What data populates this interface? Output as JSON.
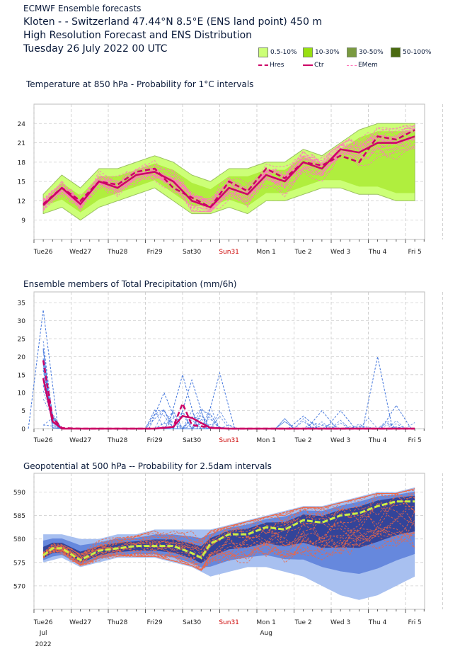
{
  "header": {
    "source": "ECMWF Ensemble forecasts",
    "location": "Kloten -  - Switzerland 47.44°N 8.5°E (ENS land point) 450 m",
    "subtitle": "High Resolution Forecast and ENS Distribution",
    "date": "Tuesday 26 July 2022 00 UTC"
  },
  "legend": {
    "items": [
      {
        "label": "0.5-10%",
        "color": "#ccff77"
      },
      {
        "label": "10-30%",
        "color": "#99e010"
      },
      {
        "label": "30-50%",
        "color": "#7a9a40"
      },
      {
        "label": "50-100%",
        "color": "#4a6a10"
      }
    ],
    "lines": [
      {
        "label": "Hres",
        "color": "#cc0066",
        "style": "dashed"
      },
      {
        "label": "Ctr",
        "color": "#cc0066",
        "style": "solid"
      },
      {
        "label": "EMem",
        "color": "#ff77bb",
        "style": "dashed"
      }
    ]
  },
  "colors": {
    "hres": "#cc0066",
    "emem_temp": "#ff77bb",
    "emem_precip": "#4477dd",
    "z_outer": "#a8c0f0",
    "z_mid": "#6688dd",
    "z_inner": "#334499",
    "z_mem": "#ee6644",
    "z_ctr": "#ccee44",
    "sunday": "#cc0000"
  },
  "x_axis": {
    "ticks": [
      "Tue26",
      "Wed27",
      "Thu28",
      "Fri29",
      "Sat30",
      "Sun31",
      "Mon 1",
      "Tue 2",
      "Wed 3",
      "Thu 4",
      "Fri 5"
    ],
    "sunday_index": 5,
    "month_labels": [
      {
        "day": 26,
        "label": "Jul"
      },
      {
        "day": 32,
        "label": "Aug"
      }
    ],
    "year": "2022"
  },
  "chart_data": [
    {
      "type": "line",
      "title": "Temperature at 850 hPa - Probability for 1°C intervals",
      "xlabel": "",
      "ylabel": "",
      "x_unit": "days from 26 Jul 00 UTC",
      "yticks": [
        9,
        12,
        15,
        18,
        21,
        24
      ],
      "ylim": [
        6,
        27
      ],
      "grid": true,
      "series": [
        {
          "name": "Hres",
          "x": [
            0,
            0.5,
            1,
            1.5,
            2,
            2.5,
            3,
            3.5,
            4,
            4.5,
            5,
            5.5,
            6,
            6.5,
            7,
            7.5,
            8,
            8.5,
            9,
            9.5,
            10
          ],
          "values": [
            11.5,
            14,
            12,
            15,
            14.5,
            16.5,
            17,
            14,
            12.5,
            11,
            15,
            13.5,
            17,
            15.5,
            18,
            17.5,
            19,
            18,
            22,
            21.5,
            23
          ]
        },
        {
          "name": "Ctr",
          "x": [
            0,
            0.5,
            1,
            1.5,
            2,
            2.5,
            3,
            3.5,
            4,
            4.5,
            5,
            5.5,
            6,
            6.5,
            7,
            7.5,
            8,
            8.5,
            9,
            9.5,
            10
          ],
          "values": [
            11.3,
            14,
            11.5,
            15,
            14,
            16,
            16.5,
            15,
            12,
            11,
            14,
            13,
            16,
            15,
            18,
            17,
            20,
            19.5,
            21,
            21,
            22
          ]
        }
      ],
      "band_0_5_10": {
        "x": [
          0,
          0.5,
          1,
          1.5,
          2,
          2.5,
          3,
          3.5,
          4,
          4.5,
          5,
          5.5,
          6,
          6.5,
          7,
          7.5,
          8,
          8.5,
          9,
          9.5,
          10
        ],
        "low": [
          10,
          11,
          9,
          11,
          12,
          13,
          14,
          12,
          10,
          10,
          11,
          10,
          12,
          12,
          13,
          14,
          14,
          13,
          13,
          12,
          12
        ],
        "high": [
          13,
          16,
          14,
          17,
          17,
          18,
          19,
          18,
          16,
          15,
          17,
          17,
          18,
          18,
          20,
          19,
          21,
          23,
          24,
          24,
          24
        ]
      }
    },
    {
      "type": "line",
      "title": "Ensemble members of Total Precipitation (mm/6h)",
      "xlabel": "",
      "ylabel": "",
      "x_unit": "days from 26 Jul 00 UTC",
      "yticks": [
        0,
        5,
        10,
        15,
        20,
        25,
        30,
        35
      ],
      "ylim": [
        0,
        38
      ],
      "grid": true,
      "series": [
        {
          "name": "Hres",
          "x": [
            0,
            0.25,
            0.5,
            1,
            2,
            3,
            3.5,
            3.75,
            4,
            4.5,
            5,
            10
          ],
          "values": [
            19,
            3,
            0.2,
            0,
            0,
            0,
            0.5,
            7,
            1,
            0.3,
            0,
            0
          ]
        },
        {
          "name": "Ctr",
          "x": [
            0,
            0.25,
            0.5,
            1,
            2,
            3,
            3.5,
            3.75,
            4,
            4.5,
            5,
            10
          ],
          "values": [
            14,
            2,
            0,
            0,
            0,
            0,
            0.5,
            3.5,
            3,
            0.2,
            0,
            0
          ]
        }
      ],
      "member_peaks": [
        {
          "x": 0,
          "value": 33
        },
        {
          "x": 3.25,
          "value": 10
        },
        {
          "x": 3.75,
          "value": 15
        },
        {
          "x": 4,
          "value": 13.5
        },
        {
          "x": 4.75,
          "value": 15.5
        },
        {
          "x": 7,
          "value": 3.5
        },
        {
          "x": 7.5,
          "value": 5
        },
        {
          "x": 8,
          "value": 5
        },
        {
          "x": 9,
          "value": 20
        },
        {
          "x": 9.5,
          "value": 6.5
        }
      ]
    },
    {
      "type": "area",
      "title": "Geopotential at 500 hPa -- Probability for 2.5dam intervals",
      "xlabel": "",
      "ylabel": "",
      "x_unit": "days from 26 Jul 00 UTC",
      "yticks": [
        570,
        575,
        580,
        585,
        590
      ],
      "ylim": [
        565,
        594
      ],
      "grid": true,
      "series": [
        {
          "name": "Ctr",
          "x": [
            0,
            0.25,
            0.5,
            1,
            1.5,
            2,
            2.5,
            3,
            3.5,
            4,
            4.25,
            4.5,
            5,
            5.5,
            6,
            6.5,
            7,
            7.5,
            8,
            8.5,
            9,
            9.5,
            10
          ],
          "values": [
            576.5,
            578,
            578,
            575.5,
            577.5,
            578,
            578.5,
            578.5,
            578.5,
            577,
            576,
            579,
            581,
            581,
            582.5,
            582,
            584,
            583.5,
            585,
            585.5,
            587,
            588,
            588
          ]
        }
      ],
      "band_outer": {
        "x": [
          0,
          0.5,
          1,
          1.5,
          2,
          2.5,
          3,
          3.5,
          4,
          4.5,
          5,
          5.5,
          6,
          6.5,
          7,
          7.5,
          8,
          8.5,
          9,
          9.5,
          10
        ],
        "low": [
          575,
          576,
          574,
          575,
          576,
          576,
          576,
          575,
          574,
          572,
          573,
          574,
          574,
          573,
          572,
          570,
          568,
          567,
          568,
          570,
          572
        ],
        "high": [
          581,
          581,
          580,
          580,
          581,
          581,
          582,
          582,
          582,
          582,
          583,
          584,
          585,
          586,
          587,
          587,
          588,
          589,
          590,
          590,
          591
        ]
      }
    }
  ]
}
